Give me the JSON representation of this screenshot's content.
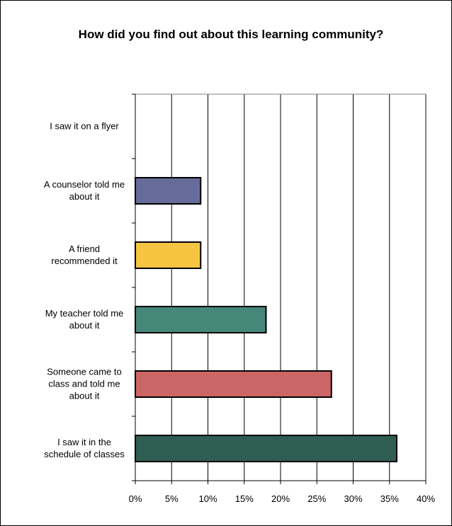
{
  "chart_data": {
    "type": "bar",
    "orientation": "horizontal",
    "title": "How did you find out about this learning community?",
    "xlabel": "",
    "ylabel": "",
    "xlim": [
      0,
      40
    ],
    "x_ticks": [
      "0%",
      "5%",
      "10%",
      "15%",
      "20%",
      "25%",
      "30%",
      "35%",
      "40%"
    ],
    "x_tick_values": [
      0,
      5,
      10,
      15,
      20,
      25,
      30,
      35,
      40
    ],
    "grid": "vertical",
    "legend": "none",
    "categories": [
      "I saw it on a flyer",
      "A counselor told me about it",
      "A friend recommended it",
      "My teacher told me about it",
      "Someone came to class and told me about it",
      "I saw it in the schedule of classes"
    ],
    "category_lines": [
      [
        "I saw it on a flyer"
      ],
      [
        "A counselor told me",
        "about it"
      ],
      [
        "A friend",
        "recommended it"
      ],
      [
        "My teacher told me",
        "about it"
      ],
      [
        "Someone came to",
        "class and told me",
        "about it"
      ],
      [
        "I saw it in the",
        "schedule of classes"
      ]
    ],
    "values": [
      0,
      9,
      9,
      18,
      27,
      36
    ],
    "colors": [
      "#ffffff",
      "#666b99",
      "#f5c542",
      "#45887a",
      "#cc6666",
      "#2f5d52"
    ]
  }
}
